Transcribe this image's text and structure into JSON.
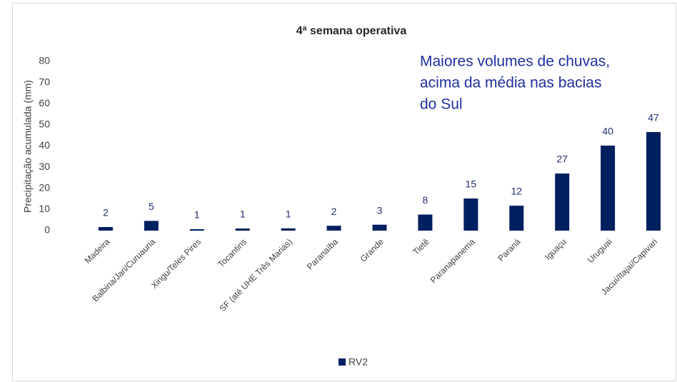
{
  "chart_data": {
    "type": "bar",
    "title": "4ª semana operativa",
    "y_label": "Precipitação acumulada (mm)",
    "annotation": [
      "Maiores volumes de chuvas,",
      "acima da média nas bacias",
      "do Sul"
    ],
    "categories": [
      "Madeira",
      "Balbina/Jari/Curuauna",
      "Xingu/Teles Pires",
      "Tocantins",
      "SF (até UHE Três Marias)",
      "Paranaíba",
      "Grande",
      "Tietê",
      "Paranapanema",
      "Paraná",
      "Iguaçu",
      "Uruguai",
      "Jacuí/Itajaí/Capivari"
    ],
    "series": [
      {
        "name": "RV2",
        "color": "#002060",
        "values": [
          1.7,
          4.6,
          0.7,
          1.0,
          1.1,
          2.3,
          2.8,
          7.6,
          15.2,
          11.8,
          27.0,
          40.2,
          46.6
        ],
        "value_labels": [
          "2",
          "5",
          "1",
          "1",
          "1",
          "2",
          "3",
          "8",
          "15",
          "12",
          "27",
          "40",
          "47"
        ]
      }
    ],
    "ylim": [
      0,
      80
    ],
    "yticks": [
      0,
      10,
      20,
      30,
      40,
      50,
      60,
      70,
      80
    ],
    "grid": false,
    "legend": "bottom"
  }
}
